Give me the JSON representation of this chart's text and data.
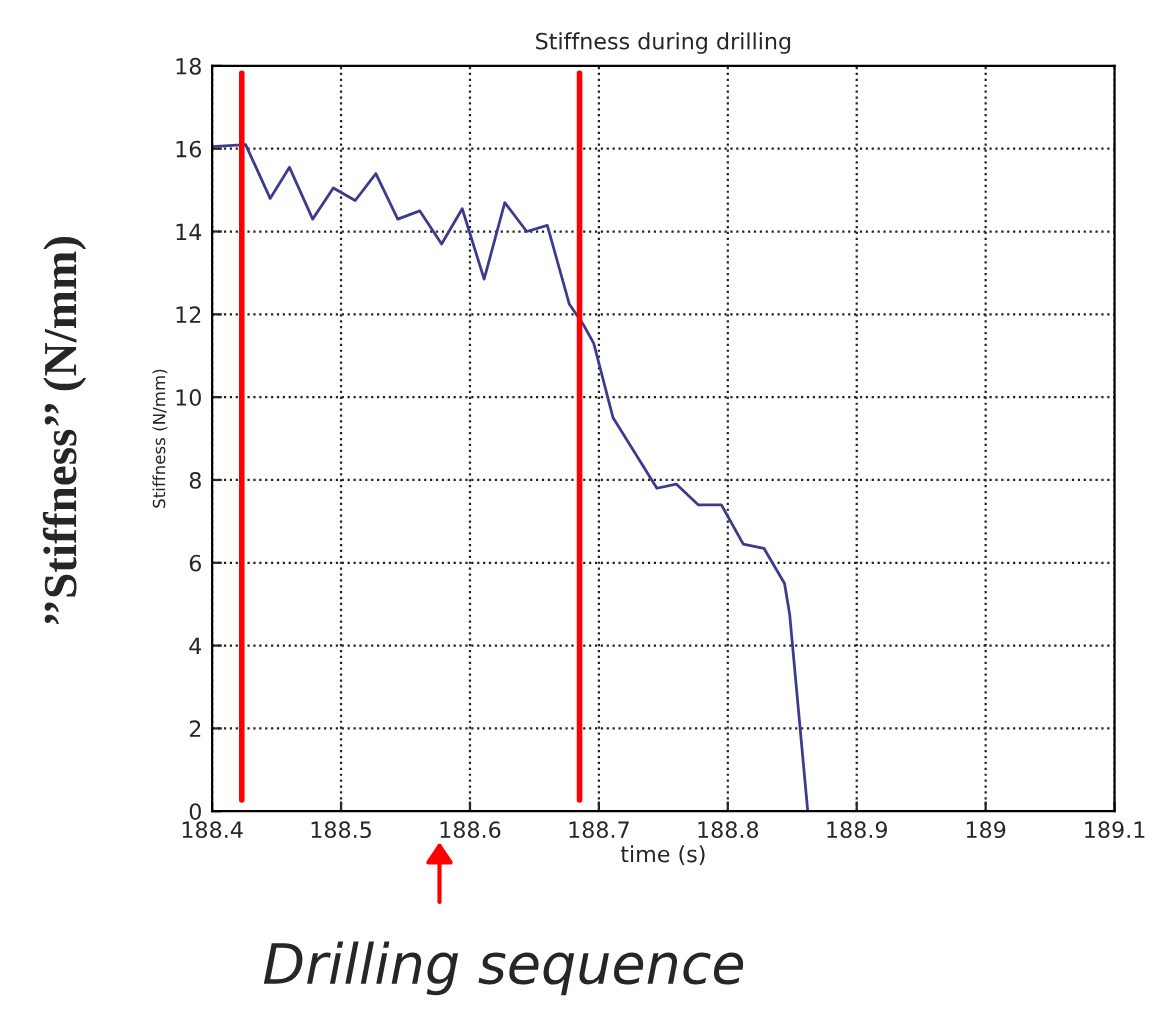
{
  "chart_data": {
    "type": "line",
    "title": "Stiffness during drilling",
    "xlabel": "time (s)",
    "ylabel": "Stiffness (N/mm)",
    "annotations": [
      "’’Stiffness’’ (N/mm)",
      "Drilling sequence"
    ],
    "x": [
      188.4,
      188.426,
      188.445,
      188.46,
      188.478,
      188.494,
      188.511,
      188.527,
      188.544,
      188.561,
      188.578,
      188.594,
      188.611,
      188.627,
      188.644,
      188.66,
      188.677,
      188.688,
      188.696,
      188.711,
      188.725,
      188.745,
      188.76,
      188.777,
      188.795,
      188.812,
      188.828,
      188.844,
      188.848,
      188.862
    ],
    "series": [
      {
        "color": "#3c3c8c",
        "values": [
          16.05,
          16.1,
          14.8,
          15.55,
          14.3,
          15.05,
          14.75,
          15.4,
          14.3,
          14.5,
          13.7,
          14.55,
          12.85,
          14.7,
          14.0,
          14.15,
          12.25,
          11.75,
          11.3,
          9.5,
          8.8,
          7.8,
          7.9,
          7.4,
          7.4,
          6.45,
          6.35,
          5.5,
          4.75,
          0
        ]
      }
    ],
    "ref_lines": [
      {
        "axis": "x",
        "value": 188.423,
        "color": "#ff0000"
      },
      {
        "axis": "x",
        "value": 188.685,
        "color": "#ff0000"
      }
    ],
    "xlim": [
      188.4,
      189.1
    ],
    "ylim": [
      0,
      18
    ],
    "xticks": [
      188.4,
      188.5,
      188.6,
      188.7,
      188.8,
      188.9,
      189,
      189.1
    ],
    "yticks": [
      0,
      2,
      4,
      6,
      8,
      10,
      12,
      14,
      16,
      18
    ],
    "grid": true,
    "line_style": "solid"
  }
}
